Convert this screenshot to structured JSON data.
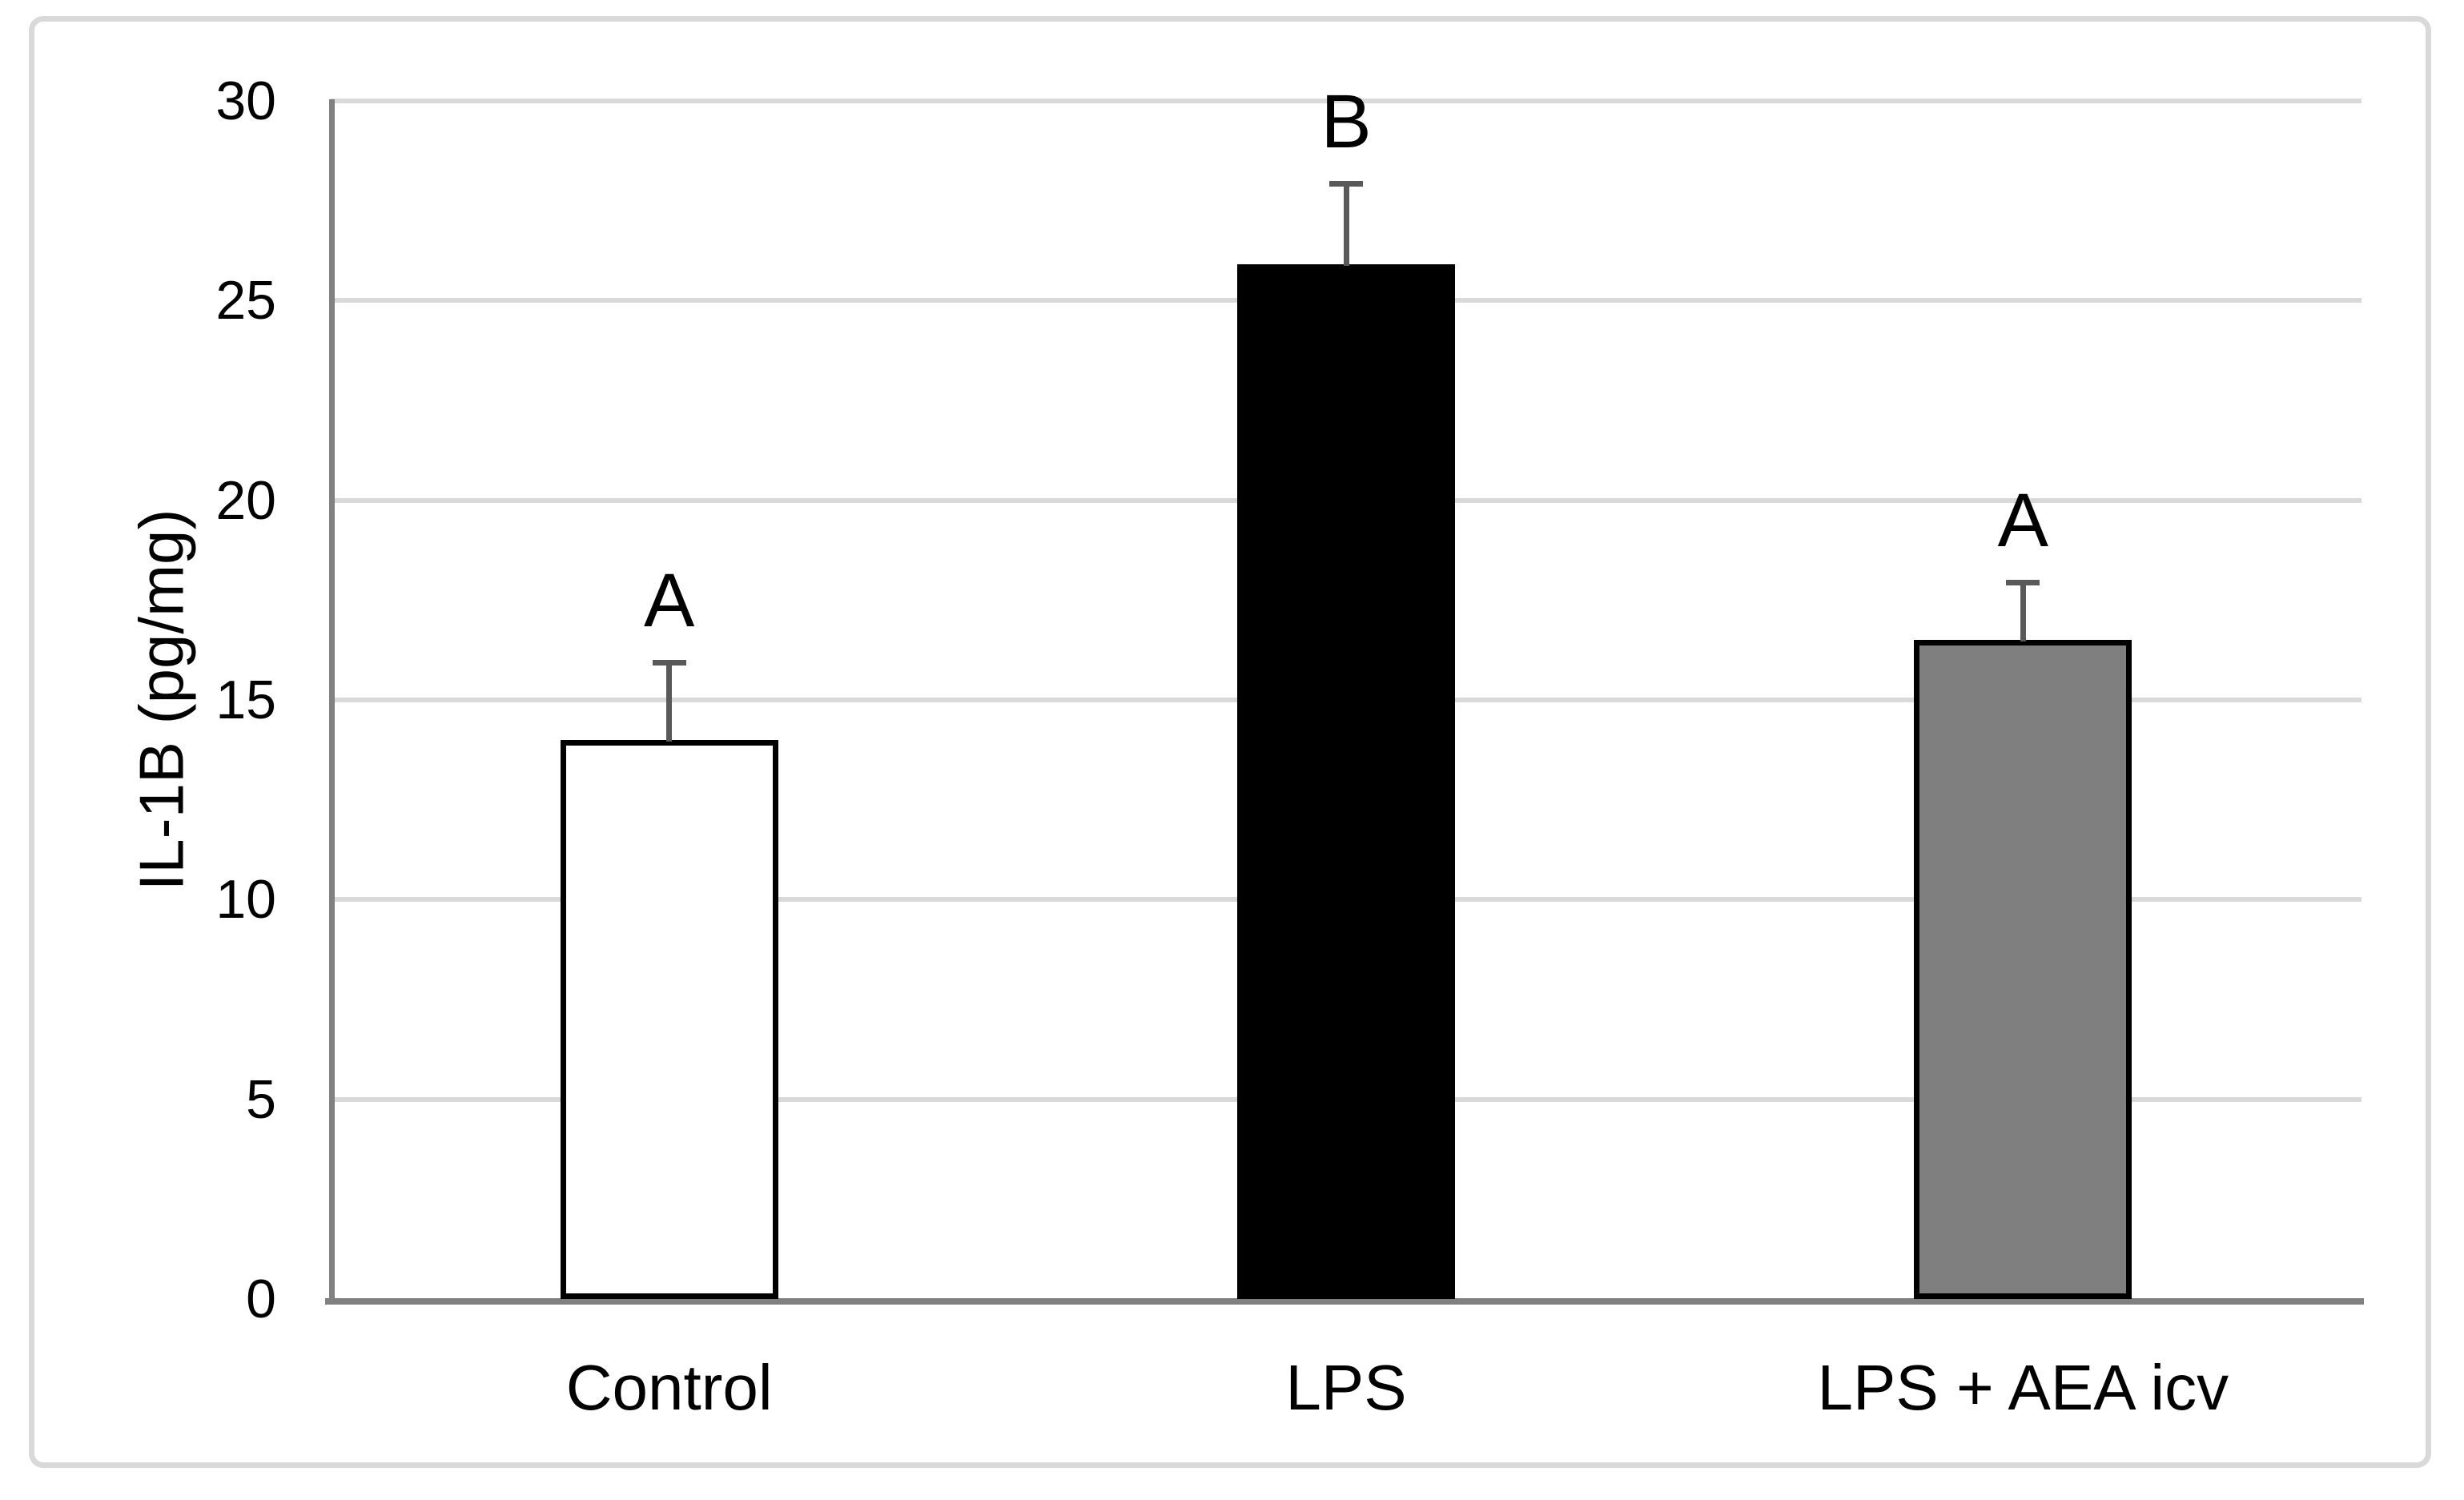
{
  "chart_data": {
    "type": "bar",
    "title": "",
    "ylabel": "IL-1B (pg/mg)",
    "xlabel": "",
    "ylim": [
      0,
      30
    ],
    "yticks": [
      0,
      5,
      10,
      15,
      20,
      25,
      30
    ],
    "grid": true,
    "legend_position": "none",
    "categories": [
      "Control",
      "LPS",
      "LPS + AEA icv"
    ],
    "series": [
      {
        "name": "IL-1B (pg/mg)",
        "values": [
          14.0,
          25.9,
          16.5
        ],
        "error_upper": [
          2.0,
          2.1,
          1.5
        ]
      }
    ],
    "annotations": [
      "A",
      "B",
      "A"
    ],
    "bar_fill_colors": [
      "#ffffff",
      "#000000",
      "#7f7f7f"
    ],
    "bar_border_colors": [
      "#000000",
      "#000000",
      "#000000"
    ],
    "colors": {
      "gridline": "#d9d9d9",
      "axis": "#808080",
      "error_bar": "#595959",
      "text": "#000000",
      "figure_border": "#d9d9d9",
      "background": "#ffffff"
    }
  }
}
